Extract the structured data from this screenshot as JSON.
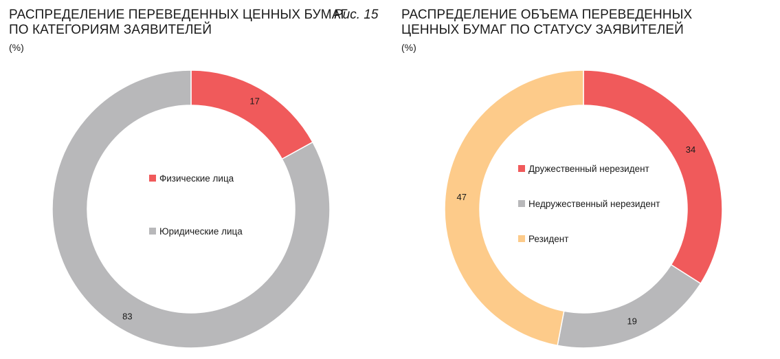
{
  "colors": {
    "red": "#f05a5b",
    "gray": "#b8b8ba",
    "orange": "#fdcb8a"
  },
  "figure_label": "Рис. 15",
  "chart_data": [
    {
      "type": "pie",
      "title": "РАСПРЕДЕЛЕНИЕ ПЕРЕВЕДЕННЫХ ЦЕННЫХ БУМАГ\nПО КАТЕГОРИЯМ ЗАЯВИТЕЛЕЙ",
      "unit": "(%)",
      "legend_position": "center",
      "slices": [
        {
          "label": "Физические лица",
          "value": 17,
          "color": "#f05a5b"
        },
        {
          "label": "Юридические лица",
          "value": 83,
          "color": "#b8b8ba"
        }
      ]
    },
    {
      "type": "pie",
      "title": "РАСПРЕДЕЛЕНИЕ ОБЪЕМА ПЕРЕВЕДЕННЫХ\nЦЕННЫХ БУМАГ ПО СТАТУСУ ЗАЯВИТЕЛЕЙ",
      "unit": "(%)",
      "legend_position": "center",
      "slices": [
        {
          "label": "Дружественный нерезидент",
          "value": 34,
          "color": "#f05a5b"
        },
        {
          "label": "Недружественный нерезидент",
          "value": 19,
          "color": "#b8b8ba"
        },
        {
          "label": "Резидент",
          "value": 47,
          "color": "#fdcb8a"
        }
      ]
    }
  ]
}
